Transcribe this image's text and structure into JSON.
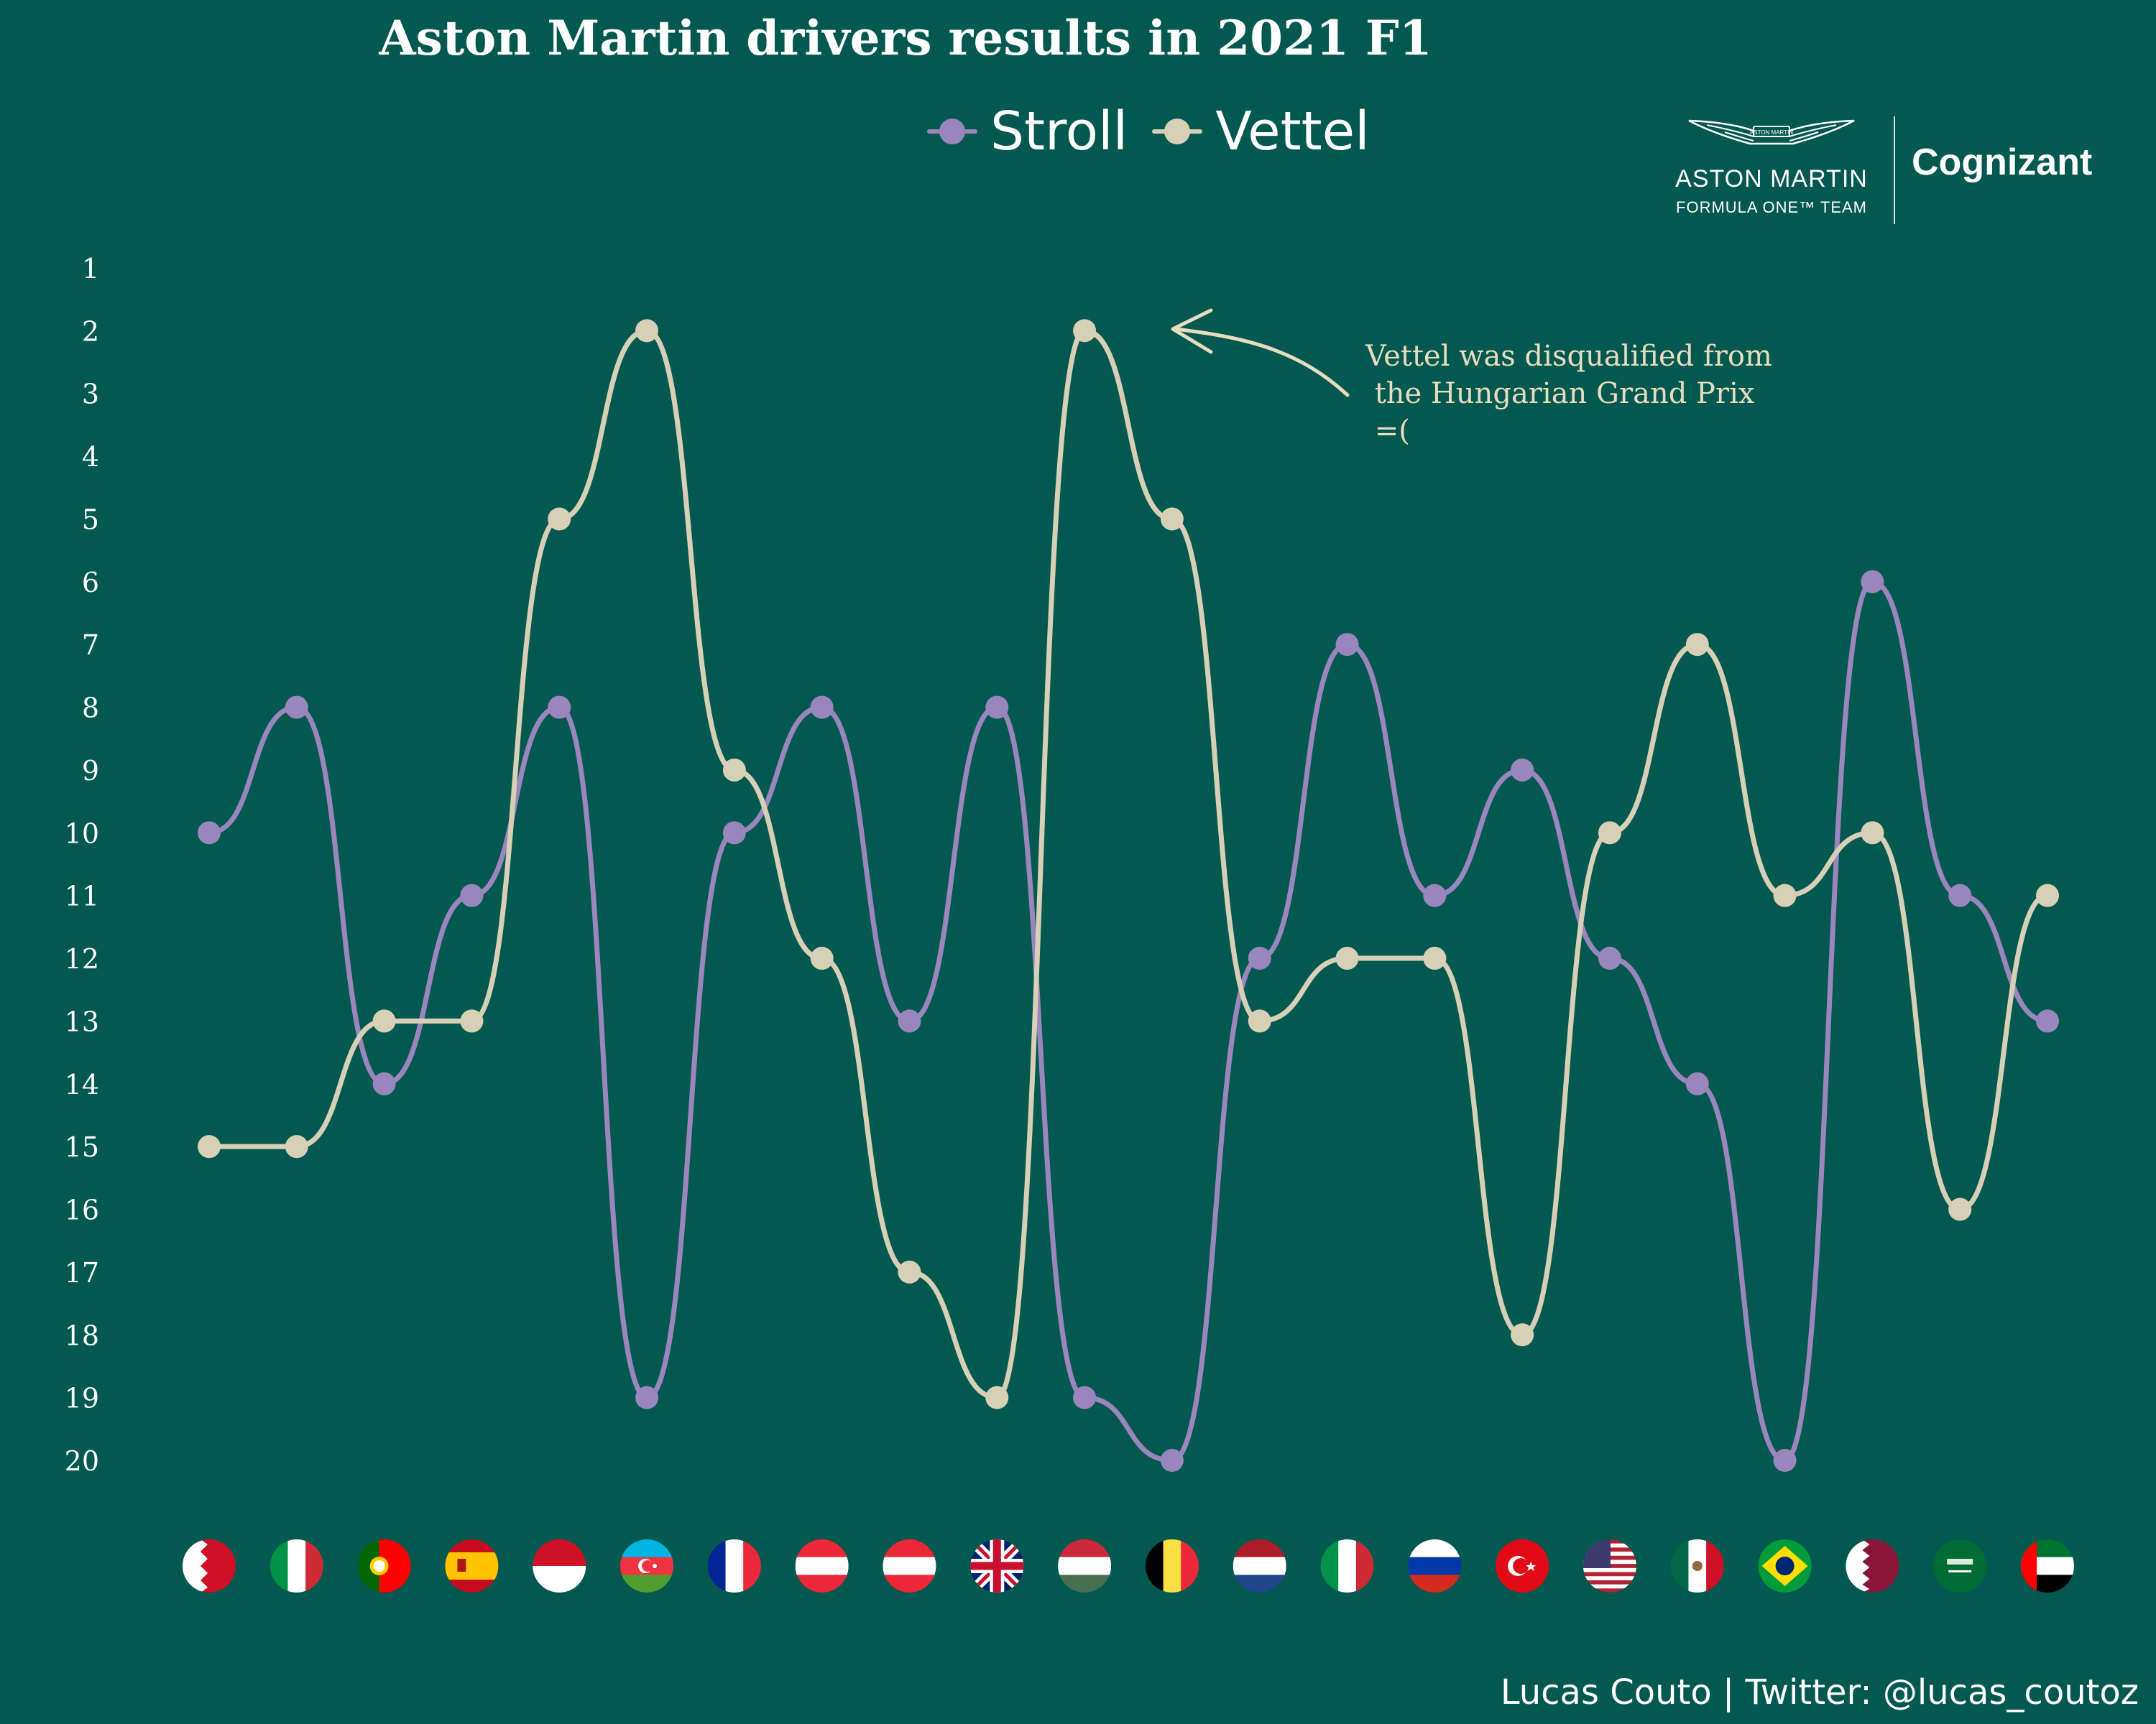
{
  "title": "Aston Martin drivers results in 2021 F1",
  "colors": {
    "background": "#03584f",
    "stroll": "#9a86bd",
    "vettel": "#d8d0b6",
    "text": "#ffffff",
    "annotation": "#e8dcc0"
  },
  "logo": {
    "wings_text": "ASTON MARTIN",
    "brand": "ASTON MARTIN",
    "subtitle": "FORMULA ONE™ TEAM",
    "sponsor": "Cognizant"
  },
  "annotation": {
    "text": "Vettel was disqualified from\n the Hungarian Grand Prix\n =("
  },
  "credit": "Lucas Couto | Twitter: @lucas_coutoz",
  "chart_data": {
    "type": "line",
    "title": "Aston Martin drivers results in 2021 F1",
    "xlabel": "",
    "ylabel": "",
    "ylim": [
      1,
      20
    ],
    "y_inverted": true,
    "yticks": [
      "1",
      "2",
      "3",
      "4",
      "5",
      "6",
      "7",
      "8",
      "9",
      "10",
      "11",
      "12",
      "13",
      "14",
      "15",
      "16",
      "17",
      "18",
      "19",
      "20"
    ],
    "legend_position": "top",
    "grid": false,
    "categories": [
      "Bahrain",
      "Italy",
      "Portugal",
      "Spain",
      "Monaco",
      "Azerbaijan",
      "France",
      "Austria",
      "Austria",
      "Great Britain",
      "Hungary",
      "Belgium",
      "Netherlands",
      "Italy",
      "Russia",
      "Turkey",
      "United States",
      "Mexico",
      "Brazil",
      "Qatar",
      "Saudi Arabia",
      "Abu Dhabi"
    ],
    "category_flags": [
      "bahrain",
      "italy",
      "portugal",
      "spain",
      "monaco",
      "azerbaijan",
      "france",
      "austria",
      "austria",
      "uk",
      "hungary",
      "belgium",
      "netherlands",
      "italy",
      "russia",
      "turkey",
      "usa",
      "mexico",
      "brazil",
      "qatar",
      "saudi-arabia",
      "uae"
    ],
    "series": [
      {
        "name": "Stroll",
        "color": "#9a86bd",
        "values": [
          10,
          8,
          14,
          11,
          8,
          19,
          10,
          8,
          13,
          8,
          19,
          20,
          12,
          7,
          11,
          9,
          12,
          14,
          20,
          6,
          11,
          13
        ]
      },
      {
        "name": "Vettel",
        "color": "#d8d0b6",
        "values": [
          15,
          15,
          13,
          13,
          5,
          2,
          9,
          12,
          17,
          19,
          2,
          5,
          13,
          12,
          12,
          18,
          10,
          7,
          11,
          10,
          16,
          11
        ]
      }
    ]
  }
}
